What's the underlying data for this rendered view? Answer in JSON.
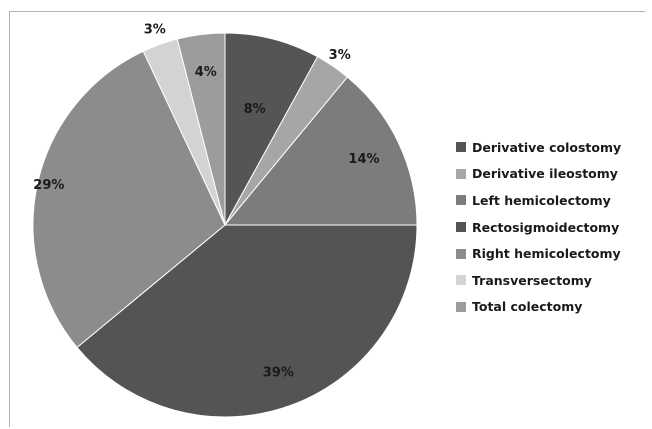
{
  "chart_data": {
    "type": "pie",
    "title": "",
    "legend_position": "right",
    "start_angle_deg": 0,
    "direction": "clockwise",
    "slices": [
      {
        "label": "Derivative colostomy",
        "value": 8,
        "value_label": "8%",
        "color": "#555555"
      },
      {
        "label": "Derivative ileostomy",
        "value": 3,
        "value_label": "3%",
        "color": "#a6a6a6"
      },
      {
        "label": "Left hemicolectomy",
        "value": 14,
        "value_label": "14%",
        "color": "#7c7c7c"
      },
      {
        "label": "Rectosigmoidectomy",
        "value": 39,
        "value_label": "39%",
        "color": "#545454"
      },
      {
        "label": "Right hemicolectomy",
        "value": 29,
        "value_label": "29%",
        "color": "#8c8c8c"
      },
      {
        "label": "Transversectomy",
        "value": 3,
        "value_label": "3%",
        "color": "#d3d3d3"
      },
      {
        "label": "Total colectomy",
        "value": 4,
        "value_label": "4%",
        "color": "#9c9c9c"
      }
    ]
  }
}
